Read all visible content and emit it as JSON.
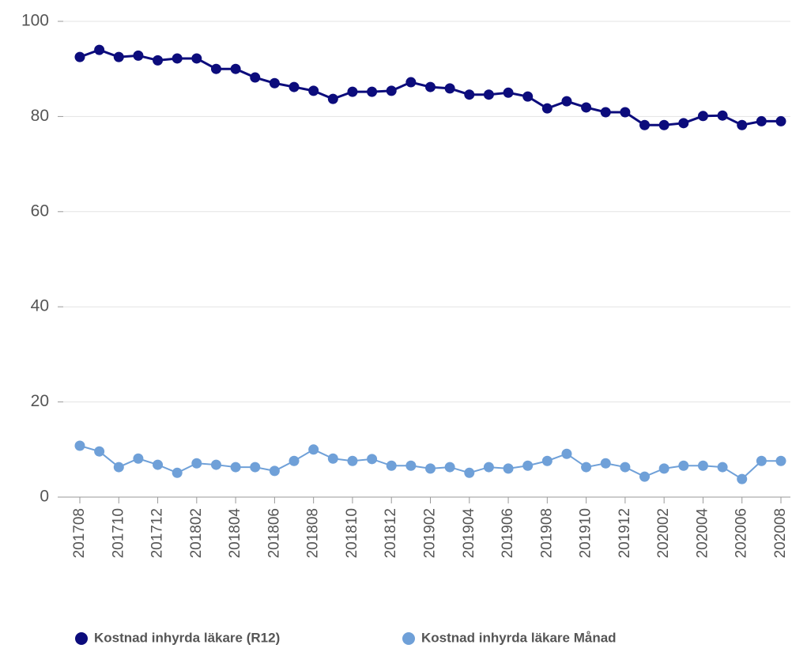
{
  "chart_data": {
    "type": "line",
    "categories": [
      "201708",
      null,
      "201710",
      null,
      "201712",
      null,
      "201802",
      null,
      "201804",
      null,
      "201806",
      null,
      "201808",
      null,
      "201810",
      null,
      "201812",
      null,
      "201902",
      null,
      "201904",
      null,
      "201906",
      null,
      "201908",
      null,
      "201910",
      null,
      "201912",
      null,
      "202002",
      null,
      "202004",
      null,
      "202006",
      null,
      "202008"
    ],
    "series": [
      {
        "name": "Kostnad inhyrda läkare (R12)",
        "color": "#0c0c7c",
        "values": [
          92.5,
          94,
          92.5,
          92.8,
          91.8,
          92.2,
          92.2,
          90,
          90,
          88.2,
          87,
          86.2,
          85.4,
          83.7,
          85.2,
          85.2,
          85.4,
          87.2,
          86.2,
          85.9,
          84.6,
          84.6,
          85,
          84.2,
          81.7,
          83.2,
          81.9,
          80.9,
          80.9,
          78.2,
          78.2,
          78.6,
          80.1,
          80.2,
          78.2,
          79,
          79
        ]
      },
      {
        "name": "Kostnad inhyrda läkare Månad",
        "color": "#6fa0d8",
        "values": [
          10.8,
          9.6,
          6.3,
          8.1,
          6.8,
          5.1,
          7.1,
          6.8,
          6.3,
          6.3,
          5.5,
          7.6,
          10,
          8.1,
          7.6,
          8,
          6.6,
          6.6,
          6,
          6.3,
          5.1,
          6.3,
          6,
          6.6,
          7.6,
          9.1,
          6.3,
          7.1,
          6.3,
          4.3,
          6,
          6.6,
          6.6,
          6.3,
          3.8,
          7.6,
          7.6
        ]
      }
    ],
    "ylim": [
      0,
      100
    ],
    "yticks": [
      0,
      20,
      40,
      60,
      80,
      100
    ],
    "grid": true
  }
}
